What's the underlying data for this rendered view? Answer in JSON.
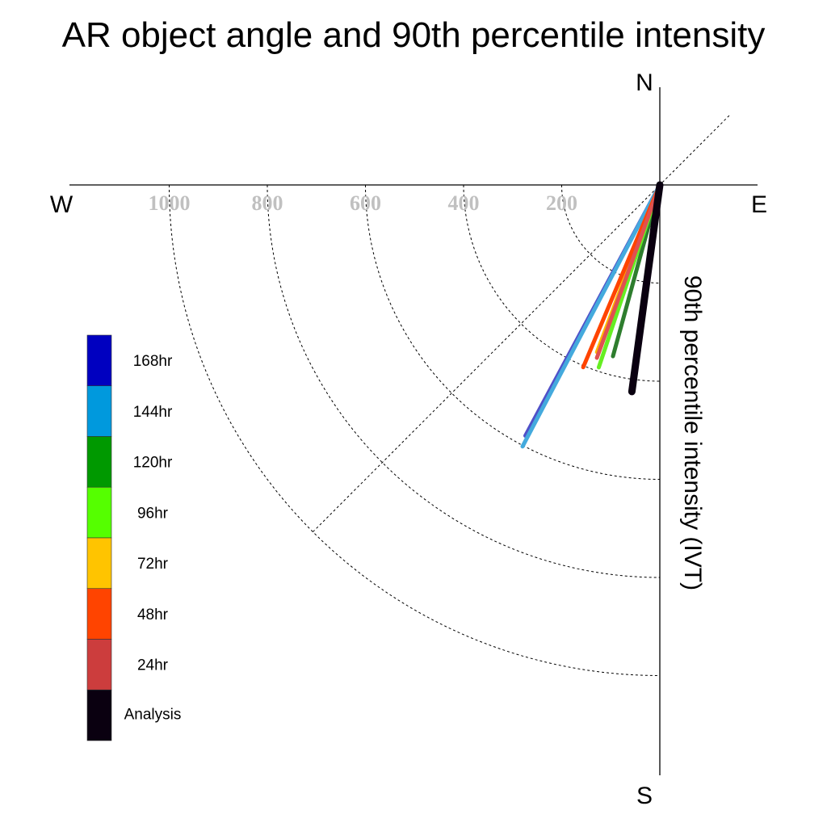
{
  "chart_data": {
    "type": "polar-vectors",
    "title": "AR object angle and 90th percentile intensity",
    "radial_label": "90th percentile intensity (IVT)",
    "compass": {
      "north": "N",
      "south": "S",
      "east": "E",
      "west": "W"
    },
    "radial_ticks": [
      200,
      400,
      600,
      800,
      1000
    ],
    "radial_tick_labels": [
      "200",
      "400",
      "600",
      "800",
      "1000"
    ],
    "rmax": 1200,
    "angle_unit": "degrees clockwise from north",
    "series": [
      {
        "name": "168hr",
        "color": "#0000c0",
        "line_color": "#5050c8",
        "angle": 208.2,
        "intensity": 580
      },
      {
        "name": "144hr",
        "color": "#0099dd",
        "line_color": "#44aadd",
        "angle": 207.7,
        "intensity": 602
      },
      {
        "name": "120hr",
        "color": "#009900",
        "line_color": "#2e7d2e",
        "angle": 195.3,
        "intensity": 362
      },
      {
        "name": "96hr",
        "color": "#55ff00",
        "line_color": "#66ee22",
        "angle": 198.5,
        "intensity": 392
      },
      {
        "name": "72hr",
        "color": "#ffc400",
        "line_color": "#ffbb00",
        "angle": 200.6,
        "intensity": 364
      },
      {
        "name": "48hr",
        "color": "#ff4400",
        "line_color": "#ff4400",
        "angle": 202.8,
        "intensity": 403
      },
      {
        "name": "24hr",
        "color": "#cc3d3d",
        "line_color": "#e05050",
        "angle": 200.0,
        "intensity": 375
      },
      {
        "name": "Analysis",
        "color": "#0a0010",
        "line_color": "#0a0010",
        "angle": 187.7,
        "intensity": 425
      }
    ],
    "grid": true
  }
}
